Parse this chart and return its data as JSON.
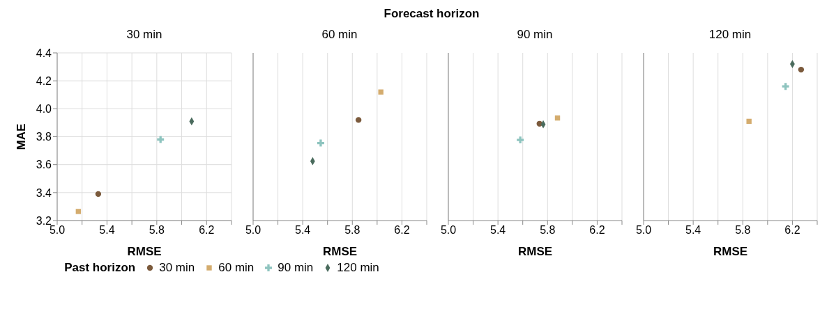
{
  "chart_data": [
    {
      "type": "scatter",
      "annotations": [
        "Forecast horizon"
      ],
      "subtitle": "30 min",
      "xlabel": "RMSE",
      "ylabel": "MAE",
      "legend_title": "Past horizon",
      "legend": "bottom",
      "grid": true,
      "xlim": [
        5.0,
        6.4
      ],
      "xticks": [
        {
          "value": 5.0,
          "label": "5.0"
        },
        {
          "value": 5.2,
          "label": null
        },
        5.4,
        {
          "value": 5.6,
          "label": null
        },
        5.8,
        {
          "value": 6.0,
          "label": null
        },
        6.2,
        {
          "value": 6.4,
          "label": null
        }
      ],
      "ylim": [
        3.2,
        4.4
      ],
      "yticks": [
        3.2,
        3.4,
        3.6,
        3.8,
        {
          "value": 4.0,
          "label": "4.0"
        },
        4.2,
        4.4
      ],
      "series": [
        {
          "name": "30 min",
          "color": "#7b5a3c",
          "marker": "circle",
          "x": [
            5.33
          ],
          "values": [
            3.39
          ]
        },
        {
          "name": "60 min",
          "color": "#d4ac6e",
          "marker": "square",
          "x": [
            5.17
          ],
          "values": [
            3.265
          ]
        },
        {
          "name": "90 min",
          "color": "#8ec4bf",
          "marker": "cross",
          "x": [
            5.83
          ],
          "values": [
            3.78
          ]
        },
        {
          "name": "120 min",
          "color": "#4a6b5d",
          "marker": "diamond",
          "x": [
            6.08
          ],
          "values": [
            3.91
          ]
        }
      ]
    },
    {
      "type": "scatter",
      "subtitle": "60 min",
      "xlabel": "RMSE",
      "grid": true,
      "tick_labels": "x",
      "xlim": [
        5.0,
        6.4
      ],
      "xticks": [
        {
          "value": 5.0,
          "label": "5.0"
        },
        {
          "value": 5.2,
          "label": null
        },
        5.4,
        {
          "value": 5.6,
          "label": null
        },
        5.8,
        {
          "value": 6.0,
          "label": null
        },
        6.2,
        {
          "value": 6.4,
          "label": null
        }
      ],
      "ylim": [
        3.2,
        4.4
      ],
      "yticks": [
        3.2,
        3.4,
        3.6,
        3.8,
        4.0,
        4.2,
        4.4
      ],
      "series": [
        {
          "color": "#7b5a3c",
          "marker": "circle",
          "x": [
            5.85
          ],
          "values": [
            3.92
          ]
        },
        {
          "color": "#d4ac6e",
          "marker": "square",
          "x": [
            6.03
          ],
          "values": [
            4.12
          ]
        },
        {
          "color": "#8ec4bf",
          "marker": "cross",
          "x": [
            5.545
          ],
          "values": [
            3.755
          ]
        },
        {
          "color": "#4a6b5d",
          "marker": "diamond",
          "x": [
            5.48
          ],
          "values": [
            3.625
          ]
        }
      ]
    },
    {
      "type": "scatter",
      "subtitle": "90 min",
      "xlabel": "RMSE",
      "grid": true,
      "tick_labels": "x",
      "xlim": [
        5.0,
        6.4
      ],
      "xticks": [
        {
          "value": 5.0,
          "label": "5.0"
        },
        {
          "value": 5.2,
          "label": null
        },
        5.4,
        {
          "value": 5.6,
          "label": null
        },
        5.8,
        {
          "value": 6.0,
          "label": null
        },
        6.2,
        {
          "value": 6.4,
          "label": null
        }
      ],
      "ylim": [
        3.2,
        4.4
      ],
      "yticks": [
        3.2,
        3.4,
        3.6,
        3.8,
        4.0,
        4.2,
        4.4
      ],
      "series": [
        {
          "color": "#7b5a3c",
          "marker": "circle",
          "x": [
            5.735
          ],
          "values": [
            3.893
          ]
        },
        {
          "color": "#d4ac6e",
          "marker": "square",
          "x": [
            5.88
          ],
          "values": [
            3.934
          ]
        },
        {
          "color": "#8ec4bf",
          "marker": "cross",
          "x": [
            5.58
          ],
          "values": [
            3.777
          ]
        },
        {
          "color": "#4a6b5d",
          "marker": "diamond",
          "x": [
            5.765
          ],
          "values": [
            3.889
          ]
        }
      ]
    },
    {
      "type": "scatter",
      "subtitle": "120 min",
      "xlabel": "RMSE",
      "grid": true,
      "tick_labels": "x",
      "xlim": [
        5.0,
        6.4
      ],
      "xticks": [
        {
          "value": 5.0,
          "label": "5.0"
        },
        {
          "value": 5.2,
          "label": null
        },
        5.4,
        {
          "value": 5.6,
          "label": null
        },
        5.8,
        {
          "value": 6.0,
          "label": null
        },
        6.2,
        {
          "value": 6.4,
          "label": null
        }
      ],
      "ylim": [
        3.2,
        4.4
      ],
      "yticks": [
        3.2,
        3.4,
        3.6,
        3.8,
        4.0,
        4.2,
        4.4
      ],
      "series": [
        {
          "color": "#7b5a3c",
          "marker": "circle",
          "x": [
            6.27
          ],
          "values": [
            4.28
          ]
        },
        {
          "color": "#d4ac6e",
          "marker": "square",
          "x": [
            5.85
          ],
          "values": [
            3.91
          ]
        },
        {
          "color": "#8ec4bf",
          "marker": "cross",
          "x": [
            6.145
          ],
          "values": [
            4.16
          ]
        },
        {
          "color": "#4a6b5d",
          "marker": "diamond",
          "x": [
            6.2
          ],
          "values": [
            4.32
          ]
        }
      ]
    }
  ]
}
